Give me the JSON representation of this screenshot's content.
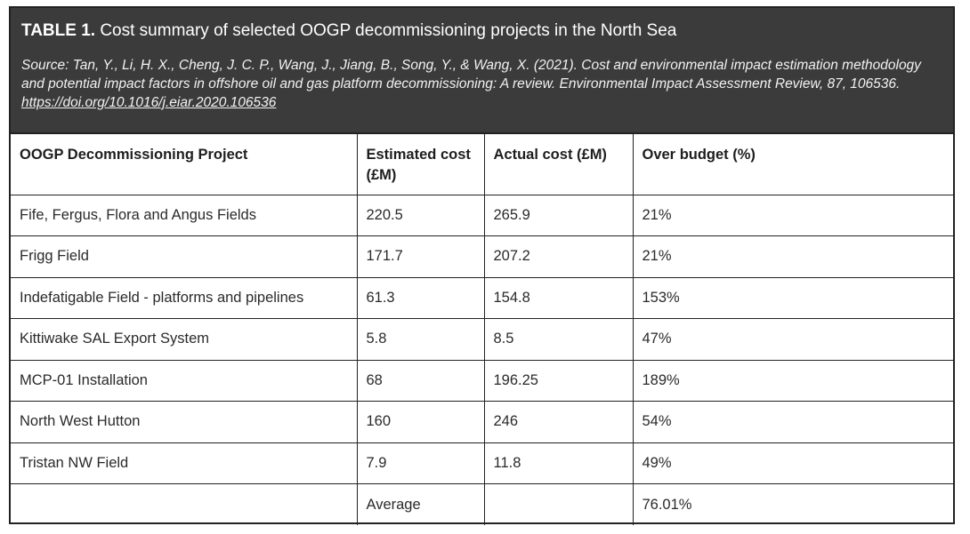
{
  "table": {
    "label": "TABLE 1.",
    "caption": "Cost summary of selected OOGP decommissioning projects in the North Sea",
    "source_text": "Source: Tan, Y., Li, H. X., Cheng, J. C. P., Wang, J., Jiang, B., Song, Y., & Wang, X. (2021). Cost and environmental impact estimation methodology and potential impact factors in offshore oil and gas platform decommissioning: A review. Environmental Impact Assessment Review, 87, 106536.",
    "source_link": "https://doi.org/10.1016/j.eiar.2020.106536",
    "columns": [
      "OOGP Decommissioning Project",
      "Estimated cost (£M)",
      "Actual cost (£M)",
      "Over budget (%)"
    ],
    "rows": [
      [
        "Fife, Fergus, Flora and Angus Fields",
        "220.5",
        "265.9",
        "21%"
      ],
      [
        "Frigg Field",
        "171.7",
        "207.2",
        "21%"
      ],
      [
        "Indefatigable Field - platforms and pipelines",
        "61.3",
        "154.8",
        "153%"
      ],
      [
        "Kittiwake SAL Export System",
        "5.8",
        "8.5",
        "47%"
      ],
      [
        "MCP-01 Installation",
        "68",
        "196.25",
        "189%"
      ],
      [
        "North West Hutton",
        "160",
        "246",
        "54%"
      ],
      [
        "Tristan NW Field",
        "7.9",
        "11.8",
        "49%"
      ],
      [
        "",
        "Average",
        "",
        "76.01%"
      ]
    ]
  }
}
